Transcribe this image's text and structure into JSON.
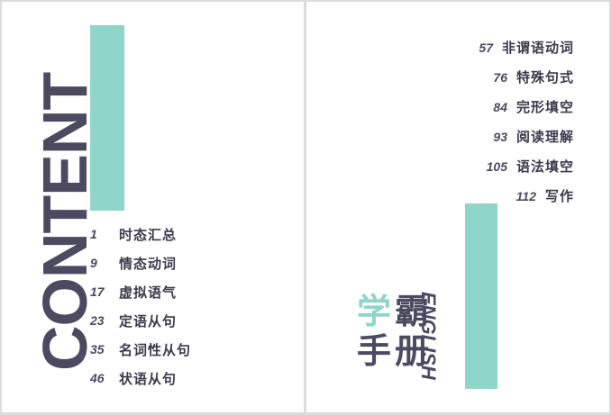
{
  "left_page": {
    "heading": "CONTENT",
    "toc": [
      {
        "page": "1",
        "title": "时态汇总"
      },
      {
        "page": "9",
        "title": "情态动词"
      },
      {
        "page": "17",
        "title": "虚拟语气"
      },
      {
        "page": "23",
        "title": "定语从句"
      },
      {
        "page": "35",
        "title": "名词性从句"
      },
      {
        "page": "46",
        "title": "状语从句"
      }
    ]
  },
  "right_page": {
    "toc": [
      {
        "page": "57",
        "title": "非谓语动词"
      },
      {
        "page": "76",
        "title": "特殊句式"
      },
      {
        "page": "84",
        "title": "完形填空"
      },
      {
        "page": "93",
        "title": "阅读理解"
      },
      {
        "page": "105",
        "title": "语法填空"
      },
      {
        "page": "112",
        "title": "写作"
      }
    ],
    "brand": {
      "char1": "学",
      "char2": "霸",
      "char3": "手",
      "char4": "册",
      "english": "ENGLISH"
    }
  },
  "colors": {
    "accent": "#8fd5ca",
    "text_dark": "#4c4a61"
  }
}
